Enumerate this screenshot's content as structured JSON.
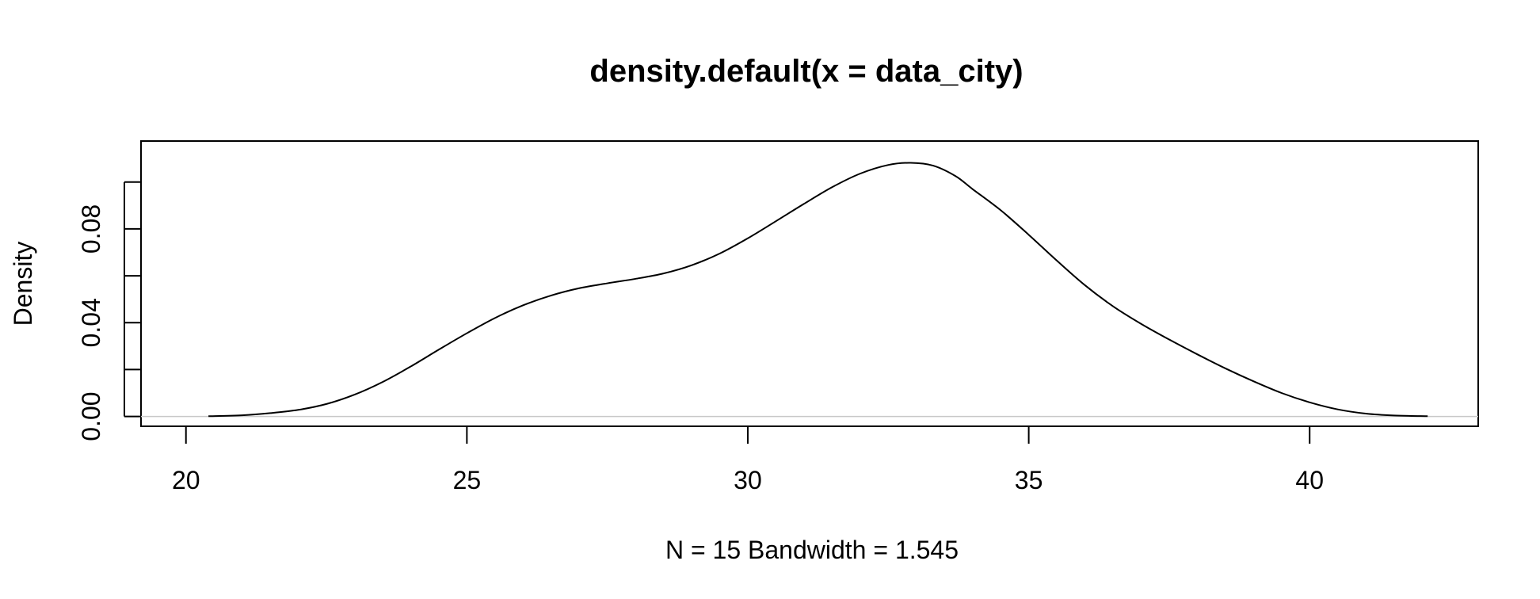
{
  "chart_data": {
    "type": "line",
    "title": "density.default(x = data_city)",
    "xlabel": "N = 15   Bandwidth = 1.545",
    "ylabel": "Density",
    "xlim": [
      19.2,
      43.0
    ],
    "ylim": [
      -0.0042,
      0.1175
    ],
    "x_ticks": [
      "20",
      "25",
      "30",
      "35",
      "40"
    ],
    "y_ticks": [
      "0.00",
      "0.04",
      "0.08"
    ],
    "y_minor_ticks": [
      0.02,
      0.06,
      0.1
    ],
    "grid": false,
    "zero_line": true,
    "series": [
      {
        "x": [
          20.4,
          21.0,
          21.5,
          22.0,
          22.5,
          23.0,
          23.5,
          24.0,
          24.5,
          25.0,
          25.5,
          26.0,
          26.5,
          27.0,
          27.5,
          28.0,
          28.5,
          29.0,
          29.5,
          30.0,
          30.5,
          31.0,
          31.5,
          32.0,
          32.5,
          32.9,
          33.3,
          33.7,
          34.0,
          34.5,
          35.0,
          35.5,
          36.0,
          36.5,
          37.0,
          37.5,
          38.0,
          38.5,
          39.0,
          39.5,
          40.0,
          40.5,
          41.0,
          41.5,
          42.1
        ],
        "values": [
          0.0001,
          0.0005,
          0.0014,
          0.0028,
          0.0053,
          0.0093,
          0.0147,
          0.0213,
          0.0285,
          0.0355,
          0.042,
          0.0474,
          0.0516,
          0.0547,
          0.0568,
          0.0587,
          0.061,
          0.0645,
          0.0695,
          0.076,
          0.0833,
          0.0907,
          0.0978,
          0.1036,
          0.1073,
          0.1082,
          0.107,
          0.1025,
          0.097,
          0.088,
          0.0775,
          0.0665,
          0.056,
          0.047,
          0.0395,
          0.0328,
          0.0265,
          0.0205,
          0.015,
          0.01,
          0.006,
          0.003,
          0.0012,
          0.0004,
          0.0001
        ]
      }
    ]
  }
}
